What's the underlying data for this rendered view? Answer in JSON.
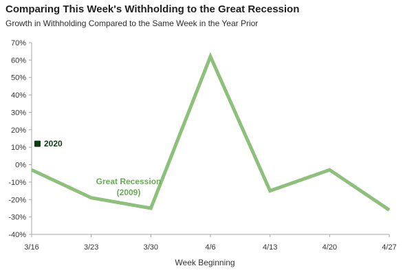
{
  "chart_data": {
    "type": "line",
    "title": "Comparing This Week's Withholding to the Great Recession",
    "subtitle": "Growth in Withholding Compared to the Same Week in the Year Prior",
    "xlabel": "Week Beginning",
    "ylabel": "",
    "categories": [
      "3/16",
      "3/23",
      "3/30",
      "4/6",
      "4/13",
      "4/20",
      "4/27"
    ],
    "y_ticks": [
      "70%",
      "60%",
      "50%",
      "40%",
      "30%",
      "20%",
      "10%",
      "0%",
      "-10%",
      "-20%",
      "-30%",
      "-40%"
    ],
    "ylim": [
      -40,
      70
    ],
    "grid": false,
    "series": [
      {
        "name": "Great Recession (2009)",
        "label_line1": "Great Recession",
        "label_line2": "(2009)",
        "color": "#8dc07a",
        "values": [
          -3,
          -19,
          -25,
          62,
          -15,
          -3,
          -26
        ]
      },
      {
        "name": "2020",
        "color": "#0d3b14",
        "values": [
          12,
          null,
          null,
          null,
          null,
          null,
          null
        ]
      }
    ]
  }
}
